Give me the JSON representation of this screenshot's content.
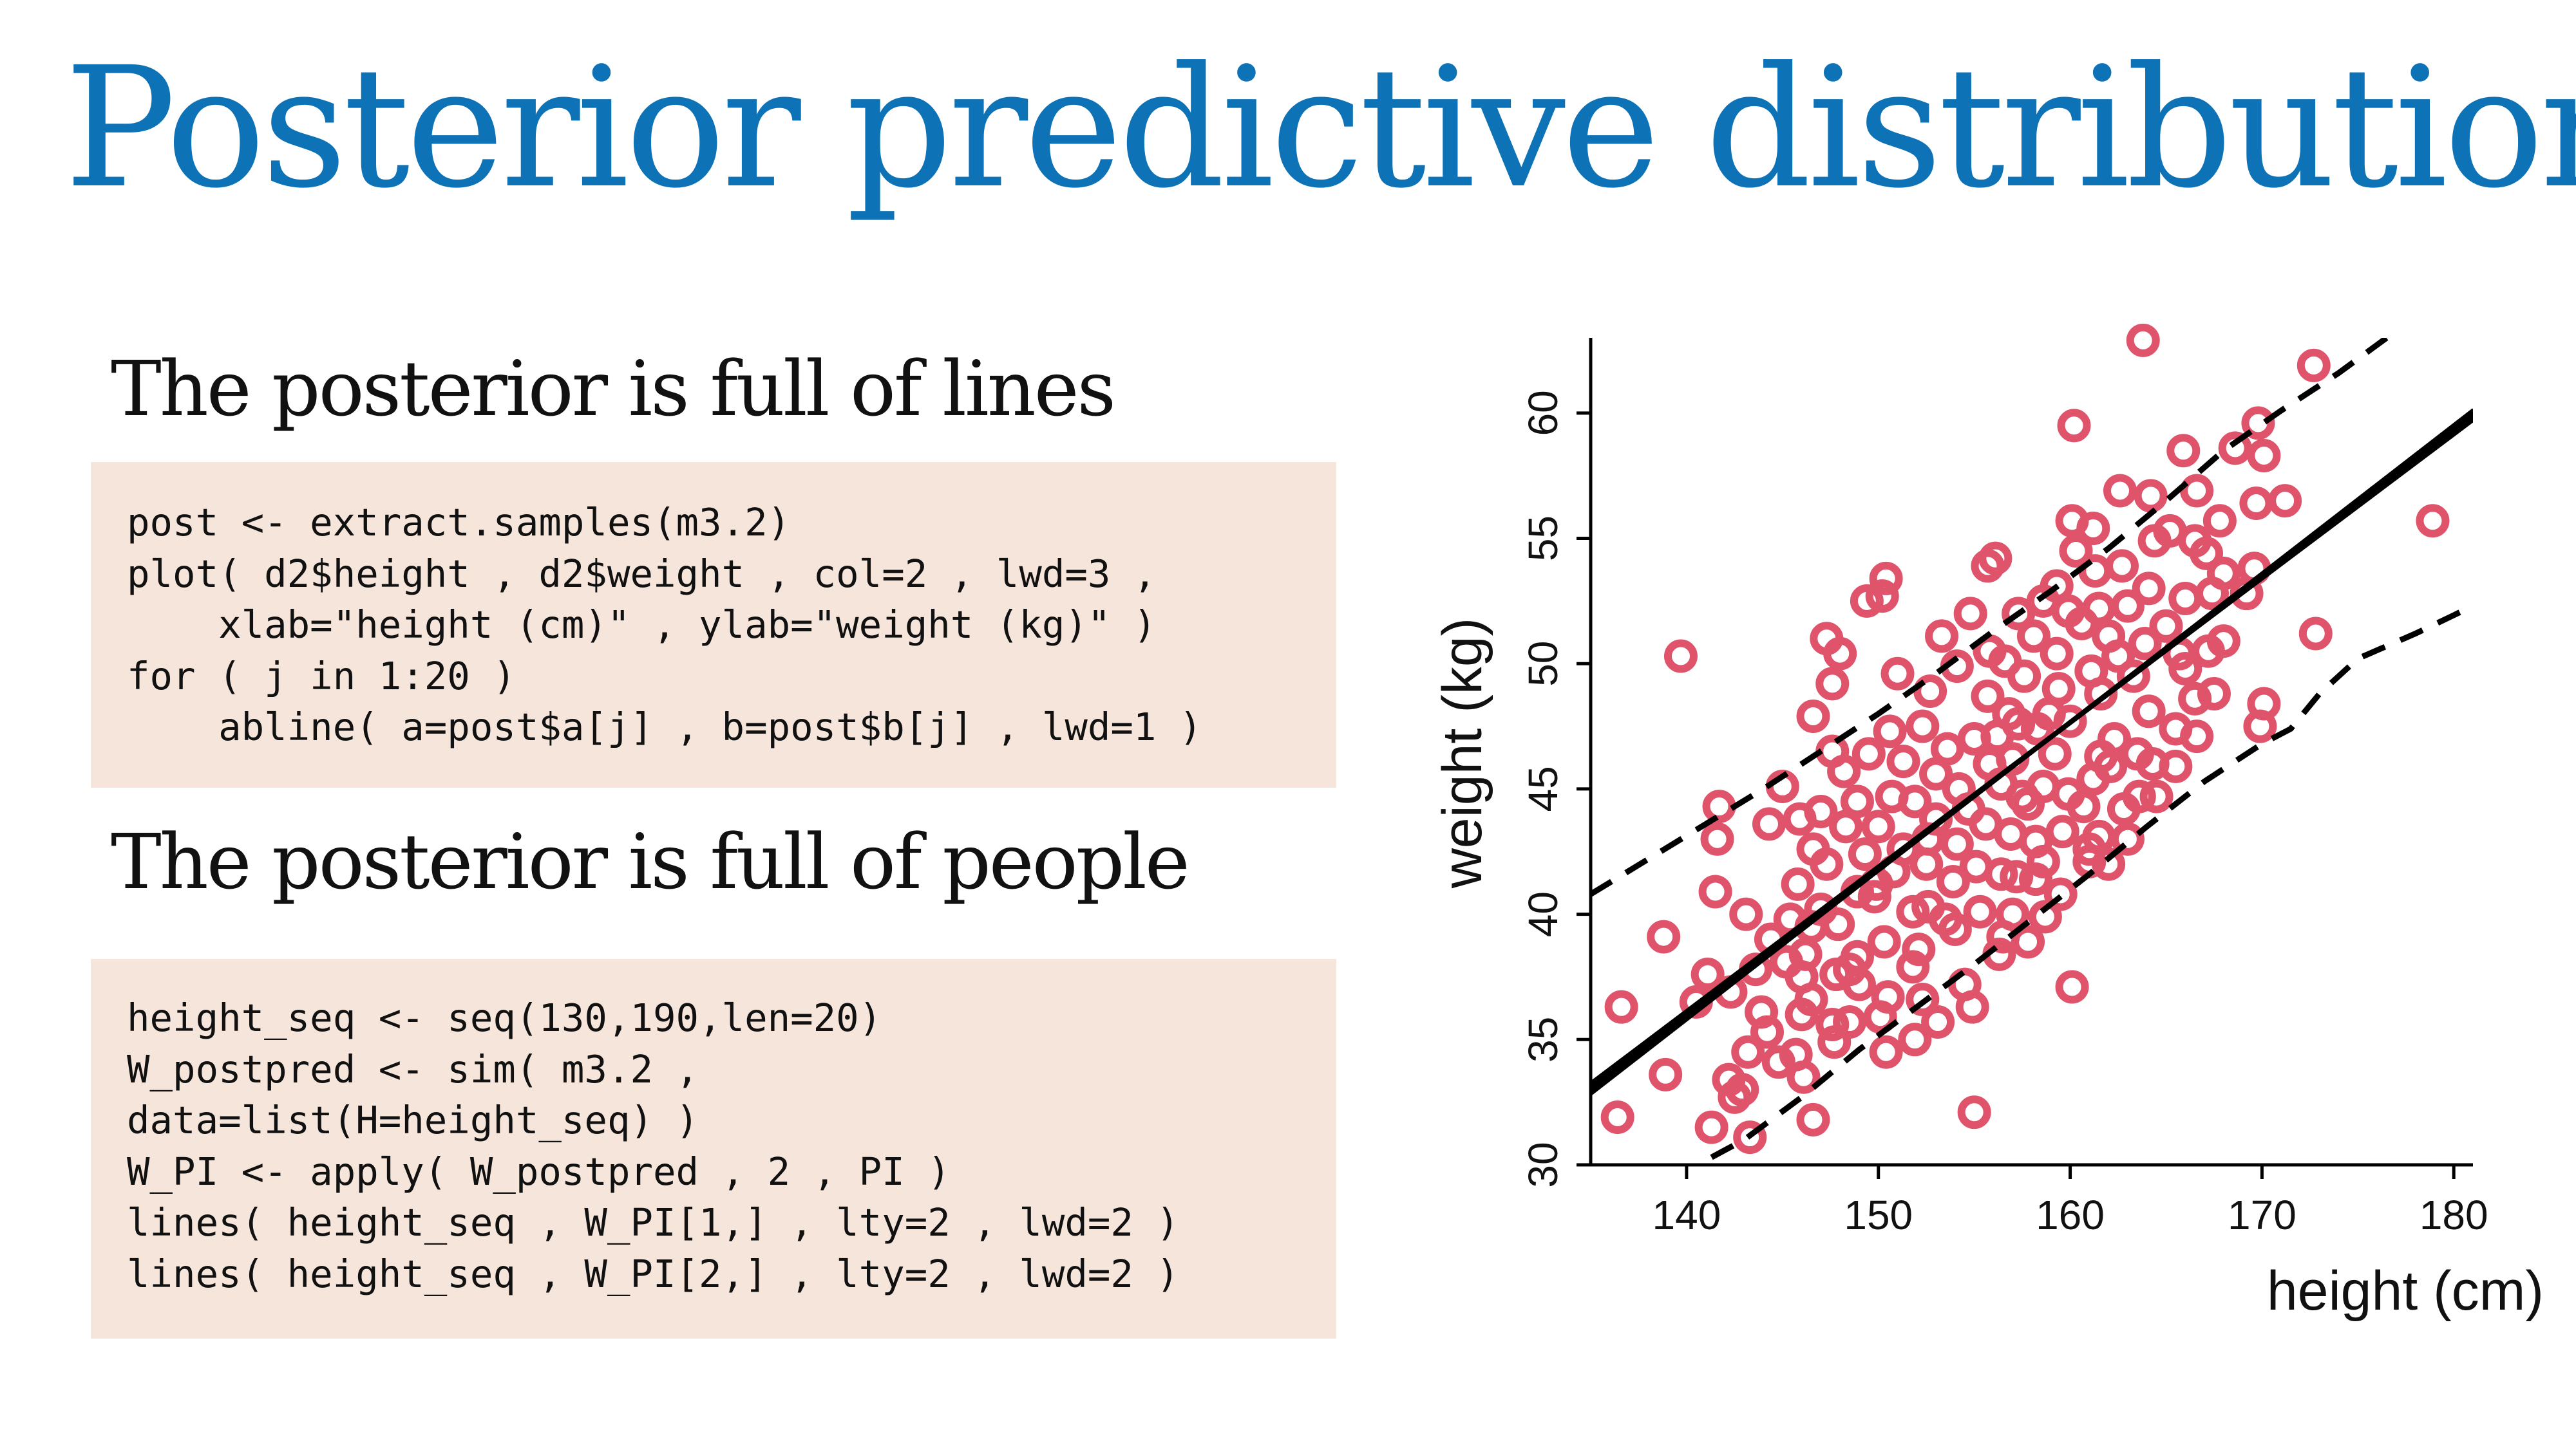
{
  "slide": {
    "title": "Posterior predictive distribution",
    "sections": [
      {
        "heading": "The posterior is full of lines",
        "code": [
          "post <- extract.samples(m3.2)",
          "plot( d2$height , d2$weight , col=2 , lwd=3 ,",
          "    xlab=\"height (cm)\" , ylab=\"weight (kg)\" )",
          "for ( j in 1:20 )",
          "    abline( a=post$a[j] , b=post$b[j] , lwd=1 )"
        ]
      },
      {
        "heading": "The posterior is full of people",
        "code": [
          "height_seq <- seq(130,190,len=20)",
          "W_postpred <- sim( m3.2 ,",
          "data=list(H=height_seq) )",
          "W_PI <- apply( W_postpred , 2 , PI )",
          "lines( height_seq , W_PI[1,] , lty=2 , lwd=2 )",
          "lines( height_seq , W_PI[2,] , lty=2 , lwd=2 )"
        ]
      }
    ]
  },
  "chart_data": {
    "type": "scatter",
    "title": "",
    "xlabel": "height (cm)",
    "ylabel": "weight (kg)",
    "xlim": [
      135,
      181
    ],
    "ylim": [
      30,
      63
    ],
    "xticks": [
      140,
      150,
      160,
      170,
      180
    ],
    "yticks": [
      30,
      35,
      40,
      45,
      50,
      55,
      60
    ],
    "grid": false,
    "legend": "none",
    "point_color": "#df536b",
    "line_color": "#000000",
    "points": [
      [
        163.8,
        62.9
      ],
      [
        139.7,
        50.3
      ],
      [
        160.2,
        59.5
      ],
      [
        172.7,
        61.9
      ],
      [
        178.9,
        55.7
      ],
      [
        172.8,
        51.2
      ],
      [
        165.9,
        58.5
      ],
      [
        169.8,
        59.6
      ],
      [
        170.1,
        58.3
      ],
      [
        168.6,
        58.6
      ],
      [
        171.2,
        56.5
      ],
      [
        169.7,
        56.4
      ],
      [
        166.6,
        56.9
      ],
      [
        162.6,
        56.9
      ],
      [
        167.1,
        54.4
      ],
      [
        169.2,
        52.8
      ],
      [
        167.2,
        50.5
      ],
      [
        170.1,
        48.4
      ],
      [
        169.9,
        47.5
      ],
      [
        166.6,
        47.1
      ],
      [
        164.3,
        46.0
      ],
      [
        161.6,
        46.3
      ],
      [
        161.5,
        43.1
      ],
      [
        162.0,
        42.0
      ],
      [
        163.0,
        43.0
      ],
      [
        160.1,
        37.1
      ],
      [
        161.0,
        42.1
      ],
      [
        156.9,
        43.2
      ],
      [
        155.3,
        40.1
      ],
      [
        154.5,
        37.2
      ],
      [
        154.9,
        36.3
      ],
      [
        153.1,
        35.7
      ],
      [
        151.9,
        35.0
      ],
      [
        150.4,
        34.5
      ],
      [
        152.3,
        36.6
      ],
      [
        148.5,
        35.7
      ],
      [
        147.6,
        35.6
      ],
      [
        146.0,
        36.0
      ],
      [
        145.7,
        34.4
      ],
      [
        144.8,
        34.1
      ],
      [
        143.2,
        34.5
      ],
      [
        142.2,
        33.4
      ],
      [
        141.3,
        31.5
      ],
      [
        143.3,
        31.1
      ],
      [
        142.5,
        32.7
      ],
      [
        138.9,
        33.6
      ],
      [
        136.4,
        31.9
      ],
      [
        136.6,
        36.3
      ],
      [
        141.1,
        37.6
      ],
      [
        140.5,
        36.5
      ],
      [
        142.3,
        36.9
      ],
      [
        143.6,
        37.8
      ],
      [
        144.4,
        39.0
      ],
      [
        141.5,
        40.9
      ],
      [
        138.8,
        39.1
      ],
      [
        143.1,
        40.0
      ],
      [
        146.5,
        39.5
      ],
      [
        145.2,
        38.1
      ],
      [
        147.8,
        37.6
      ],
      [
        148.9,
        38.3
      ],
      [
        147.9,
        39.6
      ],
      [
        145.8,
        41.2
      ],
      [
        146.6,
        42.6
      ],
      [
        145.9,
        43.8
      ],
      [
        144.3,
        43.6
      ],
      [
        141.6,
        43.0
      ],
      [
        141.7,
        44.3
      ],
      [
        145.0,
        45.1
      ],
      [
        147.0,
        44.1
      ],
      [
        148.2,
        45.7
      ],
      [
        147.6,
        46.5
      ],
      [
        146.6,
        47.9
      ],
      [
        147.6,
        49.2
      ],
      [
        148.0,
        50.4
      ],
      [
        147.3,
        51.0
      ],
      [
        149.4,
        52.5
      ],
      [
        150.2,
        52.7
      ],
      [
        150.4,
        53.4
      ],
      [
        151.0,
        49.6
      ],
      [
        150.6,
        47.3
      ],
      [
        149.5,
        46.4
      ],
      [
        148.9,
        44.5
      ],
      [
        150.0,
        43.5
      ],
      [
        149.3,
        42.4
      ],
      [
        150.8,
        41.7
      ],
      [
        149.8,
        40.7
      ],
      [
        151.8,
        40.1
      ],
      [
        152.1,
        38.6
      ],
      [
        153.5,
        39.8
      ],
      [
        153.9,
        41.3
      ],
      [
        152.6,
        43.0
      ],
      [
        151.9,
        44.5
      ],
      [
        153.0,
        45.6
      ],
      [
        152.3,
        47.5
      ],
      [
        152.7,
        48.9
      ],
      [
        154.1,
        49.9
      ],
      [
        153.3,
        51.1
      ],
      [
        154.8,
        52.0
      ],
      [
        155.7,
        53.9
      ],
      [
        156.1,
        54.2
      ],
      [
        155.8,
        50.5
      ],
      [
        155.7,
        48.7
      ],
      [
        155.0,
        47.0
      ],
      [
        154.2,
        45.0
      ],
      [
        155.6,
        43.6
      ],
      [
        156.4,
        41.6
      ],
      [
        157.0,
        40.0
      ],
      [
        157.8,
        38.9
      ],
      [
        158.7,
        39.9
      ],
      [
        159.5,
        40.8
      ],
      [
        158.2,
        42.9
      ],
      [
        157.5,
        44.7
      ],
      [
        157.0,
        46.2
      ],
      [
        156.8,
        48.0
      ],
      [
        157.6,
        49.5
      ],
      [
        158.1,
        51.1
      ],
      [
        158.6,
        52.5
      ],
      [
        159.3,
        53.1
      ],
      [
        160.3,
        54.5
      ],
      [
        160.1,
        55.7
      ],
      [
        161.2,
        55.4
      ],
      [
        161.3,
        53.7
      ],
      [
        160.6,
        51.6
      ],
      [
        159.3,
        50.4
      ],
      [
        159.4,
        49.0
      ],
      [
        160.0,
        47.7
      ],
      [
        159.2,
        46.4
      ],
      [
        158.6,
        45.1
      ],
      [
        160.7,
        44.3
      ],
      [
        161.2,
        45.4
      ],
      [
        162.3,
        47.0
      ],
      [
        161.6,
        48.8
      ],
      [
        162.5,
        50.3
      ],
      [
        163.0,
        52.3
      ],
      [
        162.7,
        53.9
      ],
      [
        164.4,
        54.9
      ],
      [
        164.1,
        53.0
      ],
      [
        163.3,
        49.5
      ],
      [
        164.1,
        48.1
      ],
      [
        165.5,
        47.4
      ],
      [
        163.5,
        46.4
      ],
      [
        164.5,
        44.7
      ],
      [
        165.7,
        50.4
      ],
      [
        166.0,
        52.6
      ],
      [
        165.2,
        55.3
      ],
      [
        164.2,
        56.7
      ],
      [
        166.5,
        54.9
      ],
      [
        167.8,
        55.7
      ],
      [
        168.0,
        53.6
      ],
      [
        169.6,
        53.8
      ],
      [
        167.4,
        52.8
      ],
      [
        166.0,
        49.8
      ],
      [
        168.0,
        50.9
      ],
      [
        167.5,
        48.8
      ],
      [
        166.5,
        48.6
      ],
      [
        162.8,
        44.2
      ],
      [
        162.1,
        45.9
      ],
      [
        159.6,
        43.3
      ],
      [
        158.2,
        41.4
      ],
      [
        156.5,
        39.1
      ],
      [
        155.1,
        41.9
      ],
      [
        152.5,
        42.0
      ],
      [
        150.3,
        38.9
      ],
      [
        149.0,
        37.2
      ],
      [
        150.5,
        36.7
      ],
      [
        151.8,
        37.9
      ],
      [
        146.5,
        36.6
      ],
      [
        144.2,
        35.3
      ],
      [
        143.9,
        36.1
      ],
      [
        146.1,
        33.5
      ],
      [
        142.9,
        33.0
      ],
      [
        146.6,
        31.8
      ],
      [
        155.0,
        32.1
      ],
      [
        156.3,
        38.4
      ],
      [
        158.6,
        42.1
      ],
      [
        161.1,
        49.7
      ],
      [
        158.9,
        48.0
      ],
      [
        156.2,
        47.1
      ],
      [
        153.6,
        46.6
      ],
      [
        151.3,
        46.1
      ],
      [
        150.7,
        44.7
      ],
      [
        148.3,
        43.5
      ],
      [
        147.3,
        42.0
      ],
      [
        149.9,
        41.2
      ],
      [
        152.6,
        40.3
      ],
      [
        154.0,
        39.4
      ],
      [
        157.2,
        41.5
      ],
      [
        153.0,
        43.8
      ],
      [
        154.7,
        44.2
      ],
      [
        156.4,
        45.2
      ],
      [
        155.8,
        46.0
      ],
      [
        157.3,
        47.6
      ],
      [
        158.3,
        47.4
      ],
      [
        156.6,
        50.1
      ],
      [
        157.3,
        52.0
      ],
      [
        161.5,
        52.2
      ],
      [
        159.9,
        52.1
      ],
      [
        162.0,
        51.1
      ],
      [
        165.0,
        51.5
      ],
      [
        163.9,
        50.8
      ],
      [
        165.5,
        45.9
      ],
      [
        163.6,
        44.7
      ],
      [
        159.9,
        44.8
      ],
      [
        161.0,
        42.6
      ],
      [
        157.8,
        44.4
      ],
      [
        154.1,
        42.8
      ],
      [
        151.3,
        42.6
      ],
      [
        148.9,
        40.9
      ],
      [
        147.0,
        40.2
      ],
      [
        145.4,
        39.8
      ],
      [
        146.2,
        38.4
      ],
      [
        148.5,
        37.8
      ],
      [
        150.1,
        35.9
      ],
      [
        146.0,
        37.5
      ],
      [
        147.7,
        34.9
      ]
    ],
    "posterior_lines": [
      [
        -45.6,
        0.583
      ],
      [
        -46.4,
        0.588
      ],
      [
        -44.8,
        0.578
      ],
      [
        -47.2,
        0.593
      ],
      [
        -45.2,
        0.58
      ],
      [
        -46.0,
        0.585
      ],
      [
        -44.4,
        0.575
      ],
      [
        -46.8,
        0.59
      ],
      [
        -45.0,
        0.579
      ],
      [
        -46.2,
        0.587
      ],
      [
        -44.6,
        0.577
      ],
      [
        -47.0,
        0.592
      ],
      [
        -45.4,
        0.582
      ],
      [
        -45.8,
        0.584
      ],
      [
        -44.2,
        0.574
      ],
      [
        -47.4,
        0.594
      ],
      [
        -45.3,
        0.581
      ],
      [
        -46.6,
        0.589
      ],
      [
        -44.9,
        0.578
      ],
      [
        -46.1,
        0.586
      ]
    ],
    "pi_lower": {
      "x": [
        141.3,
        143.0,
        146.0,
        149.0,
        152.0,
        155.0,
        158.0,
        161.0,
        164.0,
        167.0,
        170.0,
        171.5,
        173.0,
        175.0,
        178.0,
        181.0
      ],
      "y": [
        30.3,
        31.0,
        32.7,
        34.6,
        36.3,
        38.0,
        39.8,
        41.6,
        43.5,
        45.3,
        46.8,
        47.4,
        48.8,
        50.2,
        51.2,
        52.3
      ]
    },
    "pi_upper": {
      "x": [
        135.0,
        138.0,
        141.0,
        144.0,
        147.0,
        150.0,
        153.0,
        156.0,
        159.0,
        162.0,
        165.0,
        168.0,
        171.0,
        174.0,
        176.5
      ],
      "y": [
        40.8,
        42.2,
        43.6,
        45.0,
        46.5,
        48.0,
        49.6,
        51.3,
        52.9,
        54.6,
        56.5,
        58.5,
        60.1,
        61.6,
        63.0
      ]
    }
  }
}
